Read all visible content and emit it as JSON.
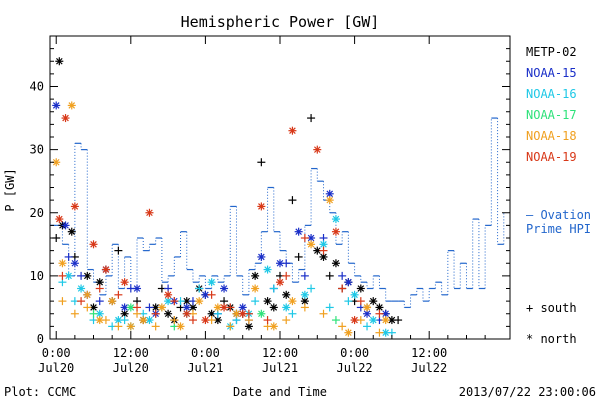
{
  "chart_data": {
    "type": "scatter",
    "title": "Hemispheric Power [GW]",
    "xlabel": "Date and Time",
    "ylabel": "P [GW]",
    "x_unit": "hours from 2013-07-20 00:00 UT",
    "xlim": [
      -1,
      73
    ],
    "ylim": [
      0,
      48
    ],
    "y_ticks": [
      0,
      10,
      20,
      30,
      40
    ],
    "x_ticks": [
      {
        "x": 0,
        "top": "0:00",
        "bottom": "Jul20"
      },
      {
        "x": 12,
        "top": "12:00",
        "bottom": "Jul20"
      },
      {
        "x": 24,
        "top": "0:00",
        "bottom": "Jul21"
      },
      {
        "x": 36,
        "top": "12:00",
        "bottom": "Jul21"
      },
      {
        "x": 48,
        "top": "0:00",
        "bottom": "Jul22"
      },
      {
        "x": 60,
        "top": "12:00",
        "bottom": "Jul22"
      }
    ],
    "legend": [
      {
        "name": "METP-02",
        "color": "#000000"
      },
      {
        "name": "NOAA-15",
        "color": "#1a2fc8"
      },
      {
        "name": "NOAA-16",
        "color": "#1ec8e6"
      },
      {
        "name": "NOAA-17",
        "color": "#2ee27a"
      },
      {
        "name": "NOAA-18",
        "color": "#f0a020"
      },
      {
        "name": "NOAA-19",
        "color": "#d83818"
      }
    ],
    "markers": {
      "south": "+ south",
      "north": "* north"
    },
    "ovation_label": [
      "— Ovation",
      "Prime HPI"
    ],
    "ovation_color": "#2266cc",
    "ovation": [
      [
        -1,
        18
      ],
      [
        0,
        18
      ],
      [
        1,
        15
      ],
      [
        2,
        10
      ],
      [
        3,
        31
      ],
      [
        4,
        30
      ],
      [
        5,
        11
      ],
      [
        6,
        9
      ],
      [
        7,
        7
      ],
      [
        8,
        10
      ],
      [
        9,
        15
      ],
      [
        10,
        8
      ],
      [
        11,
        13
      ],
      [
        12,
        8
      ],
      [
        13,
        16
      ],
      [
        14,
        14
      ],
      [
        15,
        15
      ],
      [
        16,
        16
      ],
      [
        17,
        9
      ],
      [
        18,
        10
      ],
      [
        19,
        13
      ],
      [
        20,
        17
      ],
      [
        21,
        11
      ],
      [
        22,
        9
      ],
      [
        23,
        10
      ],
      [
        24,
        8
      ],
      [
        25,
        10
      ],
      [
        26,
        9
      ],
      [
        27,
        10
      ],
      [
        28,
        21
      ],
      [
        29,
        10
      ],
      [
        30,
        7
      ],
      [
        31,
        11
      ],
      [
        32,
        12
      ],
      [
        33,
        17
      ],
      [
        34,
        24
      ],
      [
        35,
        17
      ],
      [
        36,
        14
      ],
      [
        37,
        12
      ],
      [
        38,
        9
      ],
      [
        39,
        11
      ],
      [
        40,
        18
      ],
      [
        41,
        27
      ],
      [
        42,
        25
      ],
      [
        43,
        22
      ],
      [
        44,
        20
      ],
      [
        45,
        15
      ],
      [
        46,
        17
      ],
      [
        47,
        12
      ],
      [
        48,
        10
      ],
      [
        49,
        9
      ],
      [
        50,
        8
      ],
      [
        51,
        10
      ],
      [
        52,
        8
      ],
      [
        53,
        6
      ],
      [
        54,
        6
      ],
      [
        55,
        6
      ],
      [
        56,
        5
      ],
      [
        57,
        7
      ],
      [
        58,
        8
      ],
      [
        59,
        6
      ],
      [
        60,
        8
      ],
      [
        61,
        9
      ],
      [
        62,
        7
      ],
      [
        63,
        14
      ],
      [
        64,
        8
      ],
      [
        65,
        12
      ],
      [
        66,
        8
      ],
      [
        67,
        19
      ],
      [
        68,
        8
      ],
      [
        69,
        18
      ],
      [
        70,
        35
      ],
      [
        71,
        15
      ],
      [
        72,
        20
      ]
    ],
    "series": [
      {
        "name": "METP-02",
        "color": "#000000",
        "south": [
          [
            0,
            16
          ],
          [
            3,
            13
          ],
          [
            8,
            11
          ],
          [
            10,
            14
          ],
          [
            13,
            6
          ],
          [
            17,
            8
          ],
          [
            20,
            5
          ],
          [
            24,
            7
          ],
          [
            27,
            6
          ],
          [
            30,
            4
          ],
          [
            33,
            28
          ],
          [
            36,
            10
          ],
          [
            38,
            22
          ],
          [
            39,
            13
          ],
          [
            41,
            35
          ],
          [
            44,
            10
          ],
          [
            46,
            8
          ],
          [
            48,
            6
          ],
          [
            50,
            5
          ],
          [
            53,
            4
          ],
          [
            55,
            3
          ]
        ],
        "north": [
          [
            0.5,
            44
          ],
          [
            1,
            18
          ],
          [
            2.5,
            17
          ],
          [
            5,
            10
          ],
          [
            6,
            5
          ],
          [
            7,
            9
          ],
          [
            9,
            6
          ],
          [
            11,
            4
          ],
          [
            14,
            3
          ],
          [
            16,
            5
          ],
          [
            18,
            4
          ],
          [
            19,
            3
          ],
          [
            21,
            6
          ],
          [
            22,
            5
          ],
          [
            23,
            8
          ],
          [
            25,
            4
          ],
          [
            26,
            3
          ],
          [
            28,
            5
          ],
          [
            29,
            4
          ],
          [
            31,
            2
          ],
          [
            32,
            10
          ],
          [
            34,
            6
          ],
          [
            35,
            5
          ],
          [
            37,
            7
          ],
          [
            40,
            6
          ],
          [
            42,
            14
          ],
          [
            43,
            13
          ],
          [
            45,
            12
          ],
          [
            47,
            9
          ],
          [
            49,
            8
          ],
          [
            51,
            6
          ],
          [
            52,
            5
          ],
          [
            54,
            3
          ]
        ]
      },
      {
        "name": "NOAA-15",
        "color": "#1a2fc8",
        "south": [
          [
            2,
            13
          ],
          [
            4,
            10
          ],
          [
            7,
            6
          ],
          [
            12,
            8
          ],
          [
            15,
            5
          ],
          [
            18,
            8
          ],
          [
            22,
            6
          ],
          [
            26,
            4
          ],
          [
            29,
            3
          ],
          [
            31,
            3
          ],
          [
            35,
            8
          ],
          [
            37,
            12
          ],
          [
            40,
            10
          ],
          [
            43,
            16
          ],
          [
            46,
            10
          ],
          [
            49,
            5
          ],
          [
            52,
            3
          ]
        ],
        "north": [
          [
            0,
            37
          ],
          [
            1.5,
            18
          ],
          [
            3,
            12
          ],
          [
            5,
            7
          ],
          [
            8,
            11
          ],
          [
            11,
            5
          ],
          [
            13,
            8
          ],
          [
            16,
            4
          ],
          [
            19,
            6
          ],
          [
            21,
            5
          ],
          [
            24,
            7
          ],
          [
            27,
            8
          ],
          [
            30,
            5
          ],
          [
            33,
            13
          ],
          [
            36,
            12
          ],
          [
            39,
            17
          ],
          [
            41,
            16
          ],
          [
            44,
            23
          ],
          [
            47,
            9
          ],
          [
            50,
            4
          ],
          [
            53,
            4
          ]
        ]
      },
      {
        "name": "NOAA-16",
        "color": "#1ec8e6",
        "south": [
          [
            1,
            9
          ],
          [
            3,
            6
          ],
          [
            6,
            3
          ],
          [
            9,
            2
          ],
          [
            11,
            3
          ],
          [
            14,
            4
          ],
          [
            17,
            5
          ],
          [
            20,
            6
          ],
          [
            23,
            8
          ],
          [
            26,
            4
          ],
          [
            29,
            3
          ],
          [
            32,
            6
          ],
          [
            35,
            8
          ],
          [
            38,
            4
          ],
          [
            41,
            8
          ],
          [
            44,
            5
          ],
          [
            47,
            6
          ],
          [
            50,
            2
          ],
          [
            54,
            1
          ]
        ],
        "north": [
          [
            2,
            10
          ],
          [
            4,
            8
          ],
          [
            7,
            4
          ],
          [
            10,
            3
          ],
          [
            12,
            2
          ],
          [
            15,
            3
          ],
          [
            18,
            6
          ],
          [
            21,
            4
          ],
          [
            25,
            9
          ],
          [
            28,
            2
          ],
          [
            31,
            4
          ],
          [
            34,
            11
          ],
          [
            37,
            5
          ],
          [
            40,
            7
          ],
          [
            43,
            15
          ],
          [
            45,
            19
          ],
          [
            48,
            7
          ],
          [
            51,
            3
          ],
          [
            53,
            1
          ]
        ]
      },
      {
        "name": "NOAA-17",
        "color": "#2ee27a",
        "south": [
          [
            6,
            4
          ],
          [
            19,
            2
          ],
          [
            45,
            3
          ]
        ],
        "north": [
          [
            12,
            5
          ],
          [
            33,
            4
          ]
        ]
      },
      {
        "name": "NOAA-18",
        "color": "#f0a020",
        "south": [
          [
            1,
            6
          ],
          [
            3,
            4
          ],
          [
            5,
            5
          ],
          [
            8,
            3
          ],
          [
            10,
            2
          ],
          [
            13,
            4
          ],
          [
            16,
            2
          ],
          [
            19,
            3
          ],
          [
            22,
            4
          ],
          [
            25,
            3
          ],
          [
            28,
            2
          ],
          [
            31,
            3
          ],
          [
            34,
            2
          ],
          [
            37,
            3
          ],
          [
            40,
            5
          ],
          [
            43,
            4
          ],
          [
            46,
            2
          ],
          [
            49,
            3
          ],
          [
            52,
            1
          ]
        ],
        "north": [
          [
            0,
            28
          ],
          [
            1,
            12
          ],
          [
            2.5,
            37
          ],
          [
            5,
            7
          ],
          [
            7,
            3
          ],
          [
            9,
            6
          ],
          [
            12,
            2
          ],
          [
            14,
            3
          ],
          [
            17,
            5
          ],
          [
            20,
            2
          ],
          [
            23,
            6
          ],
          [
            26,
            5
          ],
          [
            29,
            4
          ],
          [
            32,
            8
          ],
          [
            35,
            2
          ],
          [
            38,
            6
          ],
          [
            41,
            15
          ],
          [
            44,
            22
          ],
          [
            47,
            1
          ],
          [
            50,
            5
          ],
          [
            53,
            3
          ]
        ]
      },
      {
        "name": "NOAA-19",
        "color": "#d83818",
        "south": [
          [
            1,
            10
          ],
          [
            4,
            6
          ],
          [
            7,
            8
          ],
          [
            10,
            7
          ],
          [
            13,
            5
          ],
          [
            16,
            4
          ],
          [
            19,
            6
          ],
          [
            22,
            3
          ],
          [
            25,
            7
          ],
          [
            28,
            5
          ],
          [
            31,
            4
          ],
          [
            34,
            3
          ],
          [
            37,
            10
          ],
          [
            40,
            16
          ],
          [
            43,
            14
          ],
          [
            46,
            8
          ],
          [
            49,
            6
          ],
          [
            52,
            4
          ]
        ],
        "north": [
          [
            0.5,
            19
          ],
          [
            1.5,
            35
          ],
          [
            3,
            21
          ],
          [
            6,
            15
          ],
          [
            8,
            11
          ],
          [
            11,
            9
          ],
          [
            15,
            20
          ],
          [
            18,
            7
          ],
          [
            21,
            4
          ],
          [
            24,
            3
          ],
          [
            27,
            5
          ],
          [
            30,
            4
          ],
          [
            33,
            21
          ],
          [
            36,
            9
          ],
          [
            38,
            33
          ],
          [
            42,
            30
          ],
          [
            45,
            17
          ],
          [
            48,
            3
          ]
        ]
      }
    ]
  },
  "footer": {
    "plot_credit": "Plot: CCMC",
    "timestamp": "2013/07/22 23:00:06"
  }
}
